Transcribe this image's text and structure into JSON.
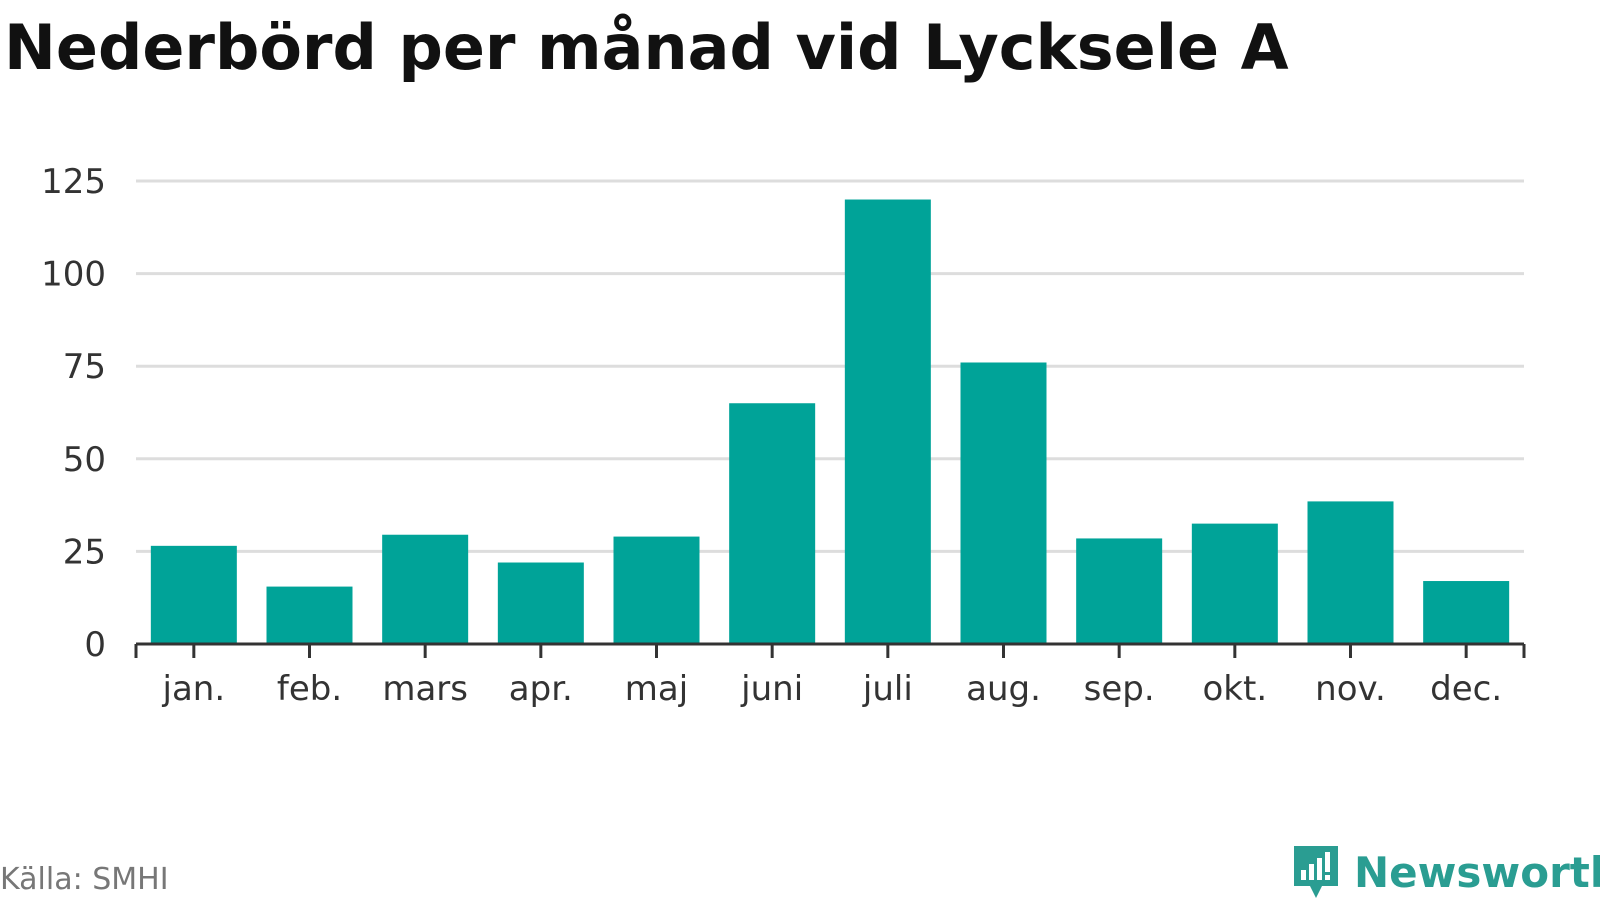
{
  "title": "Nederbörd per månad vid Lycksele A",
  "source": "Källa: SMHI",
  "brand": {
    "name": "Newsworthy",
    "icon": "newsworthy-logo-icon",
    "color": "#2a9d92"
  },
  "chart_data": {
    "type": "bar",
    "title": "Nederbörd per månad vid Lycksele A",
    "categories": [
      "jan.",
      "feb.",
      "mars",
      "apr.",
      "maj",
      "juni",
      "juli",
      "aug.",
      "sep.",
      "okt.",
      "nov.",
      "dec."
    ],
    "values": [
      26.5,
      15.5,
      29.5,
      22,
      29,
      65,
      120,
      76,
      28.5,
      32.5,
      38.5,
      17
    ],
    "ylim": [
      0,
      125
    ],
    "yticks": [
      0,
      25,
      50,
      75,
      100,
      125
    ],
    "grid": true,
    "bar_color": "#00a398",
    "xlabel": "",
    "ylabel": ""
  }
}
